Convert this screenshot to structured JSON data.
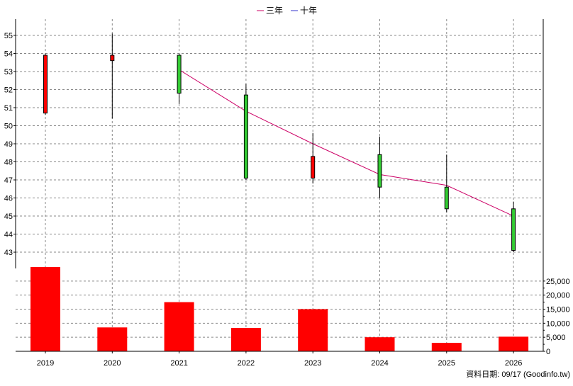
{
  "legend": [
    {
      "label": "三年",
      "color": "#cc0066"
    },
    {
      "label": "十年",
      "color": "#3333cc"
    }
  ],
  "footer": "資料日期: 09/17  (Goodinfo.tw)",
  "colors": {
    "up": "#ff0000",
    "down": "#33cc33",
    "volume": "#ff0000",
    "ma3": "#cc0066",
    "grid": "#888888"
  },
  "chart_data": [
    {
      "type": "candlestick",
      "categories": [
        "2019",
        "2020",
        "2021",
        "2022",
        "2023",
        "2024",
        "2025",
        "2026"
      ],
      "ohlc": [
        {
          "x": "2019",
          "open": 50.7,
          "high": 54.0,
          "low": 50.6,
          "close": 53.9
        },
        {
          "x": "2020",
          "open": 53.6,
          "high": 55.1,
          "low": 50.4,
          "close": 53.9
        },
        {
          "x": "2021",
          "open": 53.9,
          "high": 54.0,
          "low": 51.2,
          "close": 51.8
        },
        {
          "x": "2022",
          "open": 51.7,
          "high": 52.3,
          "low": 47.0,
          "close": 47.1
        },
        {
          "x": "2023",
          "open": 47.1,
          "high": 49.6,
          "low": 46.8,
          "close": 48.3
        },
        {
          "x": "2024",
          "open": 48.4,
          "high": 49.4,
          "low": 46.0,
          "close": 46.6
        },
        {
          "x": "2025",
          "open": 46.6,
          "high": 48.4,
          "low": 45.2,
          "close": 45.4
        },
        {
          "x": "2026",
          "open": 45.4,
          "high": 45.8,
          "low": 43.0,
          "close": 43.1
        }
      ],
      "series": [
        {
          "name": "三年",
          "x": [
            "2021",
            "2022",
            "2023",
            "2024",
            "2025",
            "2026"
          ],
          "values": [
            53.1,
            50.8,
            49.0,
            47.3,
            46.7,
            45.0
          ]
        }
      ],
      "yticks": [
        43,
        44,
        45,
        46,
        47,
        48,
        49,
        50,
        51,
        52,
        53,
        54,
        55
      ],
      "ylim": [
        42.1,
        55.9
      ],
      "grid": true,
      "legend_position": "top-center"
    },
    {
      "type": "bar",
      "categories": [
        "2019",
        "2020",
        "2021",
        "2022",
        "2023",
        "2024",
        "2025",
        "2026"
      ],
      "values": [
        30000,
        8500,
        17500,
        8300,
        15000,
        5000,
        3000,
        5200
      ],
      "yticks": [
        0,
        5000,
        10000,
        15000,
        20000,
        25000
      ],
      "ytick_labels": [
        "0",
        "5,000",
        "10,000",
        "15,000",
        "20,000",
        "25,000"
      ],
      "ylim": [
        0,
        29500
      ],
      "grid": true
    }
  ]
}
